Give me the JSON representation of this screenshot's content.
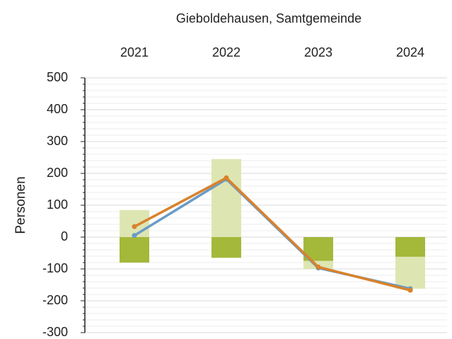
{
  "chart_data": {
    "type": "bar-line",
    "title": "Gieboldehausen, Samtgemeinde",
    "ylabel": "Personen",
    "categories": [
      "2021",
      "2022",
      "2023",
      "2024"
    ],
    "series": [
      {
        "type": "bar",
        "color": "#a4b83a",
        "values": [
          -80,
          -65,
          -75,
          -62
        ]
      },
      {
        "type": "bar",
        "color": "#dde6b2",
        "values": [
          85,
          245,
          -25,
          -100
        ]
      },
      {
        "type": "line",
        "color": "#6a9bc6",
        "values": [
          5,
          182,
          -97,
          -162
        ]
      },
      {
        "type": "line",
        "color": "#d9822b",
        "values": [
          33,
          186,
          -94,
          -167
        ]
      }
    ],
    "ylim": [
      -300,
      500
    ],
    "yticks": [
      -300,
      -200,
      -100,
      0,
      100,
      200,
      300,
      400,
      500
    ],
    "yminor_ticks": [
      -280,
      -260,
      -240,
      -220,
      -180,
      -160,
      -140,
      -120,
      -80,
      -60,
      -40,
      -20,
      20,
      40,
      60,
      80,
      120,
      140,
      160,
      180,
      220,
      240,
      260,
      280,
      320,
      340,
      360,
      380,
      420,
      440,
      460,
      480
    ],
    "grid": true
  }
}
